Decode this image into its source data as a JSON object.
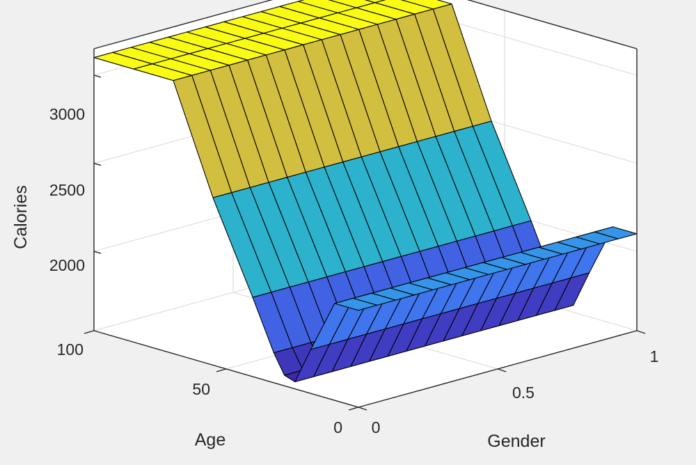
{
  "chart_data": {
    "type": "surface",
    "title": "",
    "xlabel": "Gender",
    "ylabel": "Age",
    "zlabel": "Calories",
    "xlim": [
      0,
      1
    ],
    "ylim": [
      0,
      100
    ],
    "zlim": [
      1550,
      3150
    ],
    "x_ticks": [
      "0",
      "0.5",
      "1"
    ],
    "y_ticks": [
      "0",
      "50",
      "100"
    ],
    "z_ticks": [
      "2000",
      "2500",
      "3000"
    ],
    "gender_grid": [
      0,
      0.0667,
      0.1333,
      0.2,
      0.2667,
      0.3333,
      0.4,
      0.4667,
      0.5333,
      0.6,
      0.6667,
      0.7333,
      0.8,
      0.8667,
      0.9333,
      1
    ],
    "age_grid": [
      0,
      9,
      18,
      24,
      28,
      32,
      40,
      55,
      70,
      85,
      100
    ],
    "calories_by_age": [
      2100,
      2100,
      1800,
      1590,
      1610,
      1720,
      2000,
      2500,
      3100,
      3100,
      3100
    ],
    "colormap": [
      "#3e26a8",
      "#4256dd",
      "#3d85f5",
      "#2bb1d1",
      "#4dc8a3",
      "#a5be4b",
      "#f1c037",
      "#f9fb15"
    ],
    "grid": true
  }
}
